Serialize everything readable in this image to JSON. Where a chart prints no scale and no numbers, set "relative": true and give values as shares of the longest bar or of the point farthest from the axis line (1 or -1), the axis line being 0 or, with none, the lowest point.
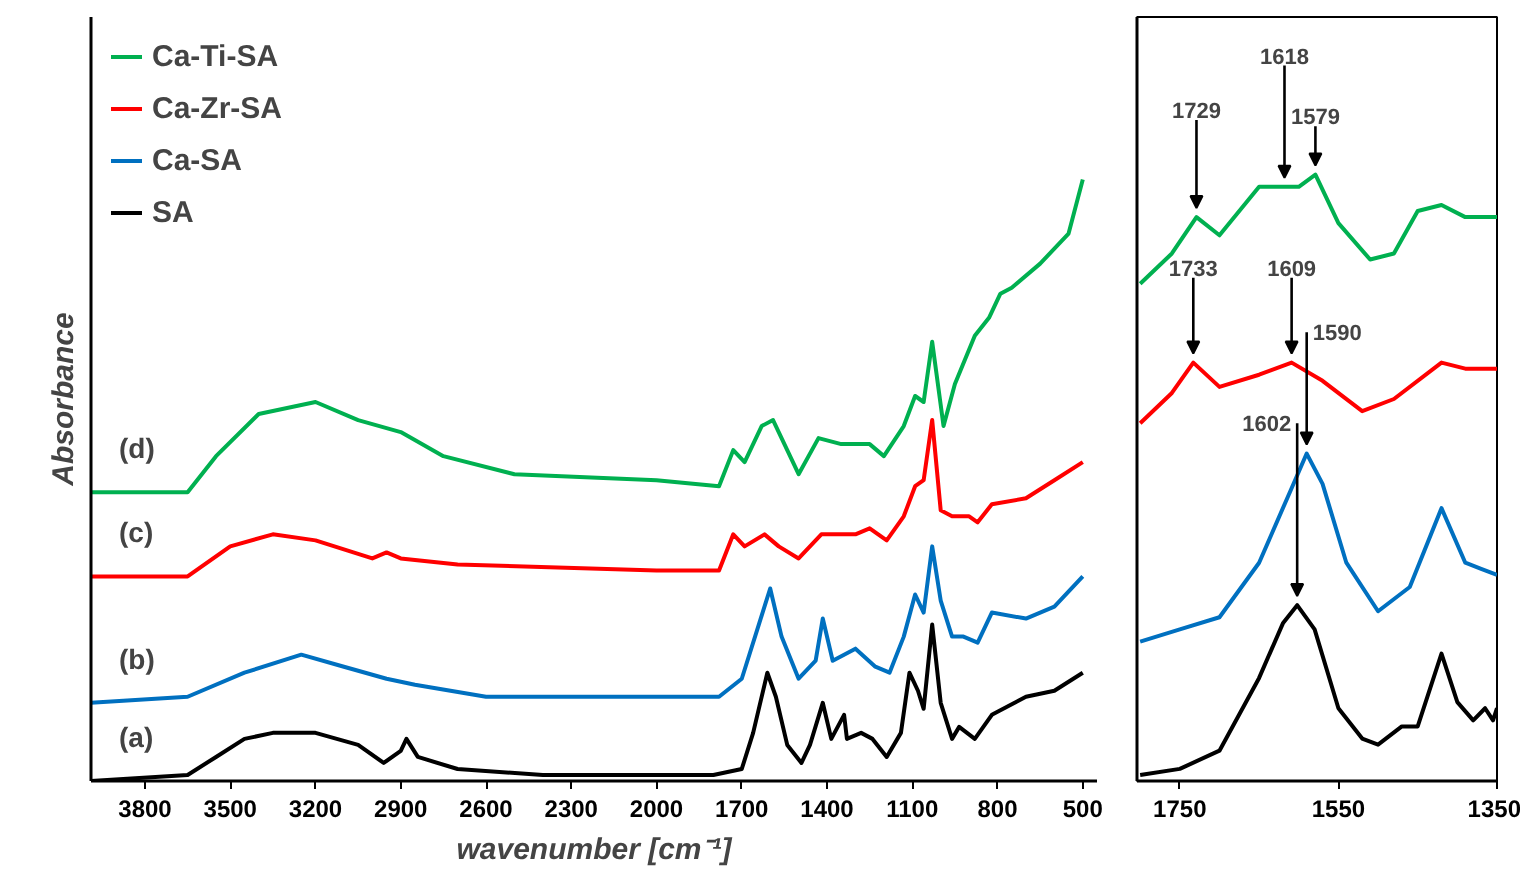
{
  "chart_data": [
    {
      "type": "line",
      "relative": true,
      "xlabel": "wavenumber [cm⁻¹]",
      "ylabel": "Absorbance",
      "xlim": [
        3990,
        450
      ],
      "xticks": [
        3800,
        3500,
        3200,
        2900,
        2600,
        2300,
        2000,
        1700,
        1400,
        1100,
        800,
        500
      ],
      "tick_labels": "x",
      "legend": "top left",
      "grid": false,
      "marker": "none",
      "line_style": "solid",
      "annotations": [
        "(d)",
        "(c)",
        "(b)",
        "(a)"
      ],
      "series": [
        {
          "name": "Ca-Ti-SA",
          "color": "#00b050",
          "x": [
            3990,
            3650,
            3550,
            3400,
            3200,
            3050,
            2900,
            2750,
            2500,
            2000,
            1780,
            1730,
            1690,
            1630,
            1590,
            1540,
            1500,
            1430,
            1350,
            1250,
            1200,
            1130,
            1090,
            1060,
            1030,
            990,
            950,
            880,
            830,
            790,
            750,
            650,
            550,
            500
          ],
          "values": [
            0.48,
            0.48,
            0.54,
            0.61,
            0.63,
            0.6,
            0.58,
            0.54,
            0.51,
            0.5,
            0.49,
            0.55,
            0.53,
            0.59,
            0.6,
            0.55,
            0.51,
            0.57,
            0.56,
            0.56,
            0.54,
            0.59,
            0.64,
            0.63,
            0.73,
            0.59,
            0.66,
            0.74,
            0.77,
            0.81,
            0.82,
            0.86,
            0.91,
            1.0
          ]
        },
        {
          "name": "Ca-Zr-SA",
          "color": "#ff0000",
          "x": [
            3990,
            3650,
            3500,
            3350,
            3200,
            3000,
            2950,
            2900,
            2700,
            2000,
            1780,
            1730,
            1690,
            1620,
            1570,
            1500,
            1420,
            1300,
            1250,
            1190,
            1130,
            1090,
            1060,
            1030,
            1000,
            960,
            900,
            870,
            820,
            700,
            600,
            500
          ],
          "values": [
            0.34,
            0.34,
            0.39,
            0.41,
            0.4,
            0.37,
            0.38,
            0.37,
            0.36,
            0.35,
            0.35,
            0.41,
            0.39,
            0.41,
            0.39,
            0.37,
            0.41,
            0.41,
            0.42,
            0.4,
            0.44,
            0.49,
            0.5,
            0.6,
            0.45,
            0.44,
            0.44,
            0.43,
            0.46,
            0.47,
            0.5,
            0.53
          ]
        },
        {
          "name": "Ca-SA",
          "color": "#0070c0",
          "x": [
            3990,
            3650,
            3450,
            3250,
            3100,
            2950,
            2850,
            2600,
            2000,
            1780,
            1700,
            1640,
            1600,
            1560,
            1500,
            1440,
            1415,
            1380,
            1300,
            1230,
            1180,
            1130,
            1090,
            1060,
            1030,
            1000,
            960,
            920,
            870,
            820,
            700,
            600,
            500
          ],
          "values": [
            0.13,
            0.14,
            0.18,
            0.21,
            0.19,
            0.17,
            0.16,
            0.14,
            0.14,
            0.14,
            0.17,
            0.26,
            0.32,
            0.24,
            0.17,
            0.2,
            0.27,
            0.2,
            0.22,
            0.19,
            0.18,
            0.24,
            0.31,
            0.28,
            0.39,
            0.3,
            0.24,
            0.24,
            0.23,
            0.28,
            0.27,
            0.29,
            0.34
          ]
        },
        {
          "name": "SA",
          "color": "#000000",
          "x": [
            3990,
            3650,
            3550,
            3450,
            3350,
            3200,
            3050,
            2960,
            2900,
            2880,
            2840,
            2700,
            2400,
            2000,
            1800,
            1700,
            1660,
            1610,
            1580,
            1540,
            1490,
            1460,
            1415,
            1385,
            1340,
            1330,
            1280,
            1240,
            1190,
            1140,
            1110,
            1080,
            1060,
            1030,
            1000,
            960,
            935,
            880,
            820,
            780,
            700,
            600,
            500
          ],
          "values": [
            0.0,
            0.01,
            0.04,
            0.07,
            0.08,
            0.08,
            0.06,
            0.03,
            0.05,
            0.07,
            0.04,
            0.02,
            0.01,
            0.01,
            0.01,
            0.02,
            0.08,
            0.18,
            0.14,
            0.06,
            0.03,
            0.06,
            0.13,
            0.07,
            0.11,
            0.07,
            0.08,
            0.07,
            0.04,
            0.08,
            0.18,
            0.15,
            0.12,
            0.26,
            0.13,
            0.07,
            0.09,
            0.07,
            0.11,
            0.12,
            0.14,
            0.15,
            0.18
          ]
        }
      ]
    },
    {
      "type": "line",
      "relative": true,
      "xlim": [
        1804,
        1350
      ],
      "xticks": [
        1750,
        1550,
        1350
      ],
      "tick_labels": "x",
      "legend": false,
      "grid": false,
      "marker": "none",
      "line_style": "solid",
      "annotations": [
        {
          "text": "1729",
          "x": 1729,
          "y": 0.93
        },
        {
          "text": "1618",
          "x": 1618,
          "y": 0.98
        },
        {
          "text": "1579",
          "x": 1579,
          "y": 1.0
        },
        {
          "text": "1733",
          "x": 1733,
          "y": 0.69
        },
        {
          "text": "1609",
          "x": 1609,
          "y": 0.69
        },
        {
          "text": "1590",
          "x": 1590,
          "y": 0.54
        },
        {
          "text": "1602",
          "x": 1602,
          "y": 0.29
        }
      ],
      "series": [
        {
          "color": "#00b050",
          "x": [
            1800,
            1760,
            1729,
            1700,
            1650,
            1618,
            1600,
            1579,
            1550,
            1510,
            1480,
            1450,
            1420,
            1390,
            1350
          ],
          "values": [
            0.82,
            0.87,
            0.93,
            0.9,
            0.98,
            0.98,
            0.98,
            1.0,
            0.92,
            0.86,
            0.87,
            0.94,
            0.95,
            0.93,
            0.93
          ]
        },
        {
          "color": "#ff0000",
          "x": [
            1800,
            1760,
            1733,
            1700,
            1650,
            1609,
            1570,
            1520,
            1480,
            1420,
            1390,
            1375,
            1350
          ],
          "values": [
            0.59,
            0.64,
            0.69,
            0.65,
            0.67,
            0.69,
            0.66,
            0.61,
            0.63,
            0.69,
            0.68,
            0.68,
            0.68
          ]
        },
        {
          "color": "#0070c0",
          "x": [
            1800,
            1750,
            1700,
            1650,
            1610,
            1590,
            1570,
            1540,
            1500,
            1460,
            1420,
            1390,
            1370,
            1350
          ],
          "values": [
            0.23,
            0.25,
            0.27,
            0.36,
            0.48,
            0.54,
            0.49,
            0.36,
            0.28,
            0.32,
            0.45,
            0.36,
            0.35,
            0.34
          ]
        },
        {
          "color": "#000000",
          "x": [
            1800,
            1750,
            1700,
            1650,
            1620,
            1602,
            1580,
            1550,
            1520,
            1500,
            1470,
            1450,
            1420,
            1400,
            1380,
            1365,
            1355,
            1350
          ],
          "values": [
            0.01,
            0.02,
            0.05,
            0.17,
            0.26,
            0.29,
            0.25,
            0.12,
            0.07,
            0.06,
            0.09,
            0.09,
            0.21,
            0.13,
            0.1,
            0.12,
            0.1,
            0.12
          ]
        }
      ]
    }
  ]
}
